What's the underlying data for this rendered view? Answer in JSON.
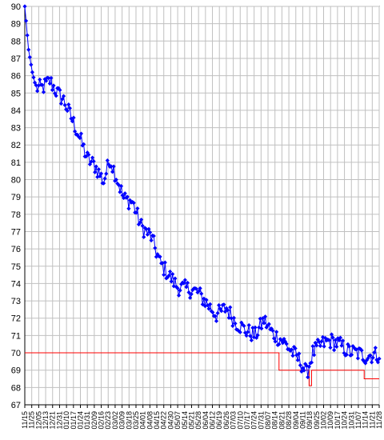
{
  "chart_data": {
    "type": "line",
    "title": "",
    "xlabel": "",
    "ylabel": "",
    "ylim": [
      67,
      90
    ],
    "y_ticks": [
      90,
      89,
      88,
      87,
      86,
      85,
      84,
      83,
      82,
      81,
      80,
      79,
      78,
      77,
      76,
      75,
      74,
      73,
      72,
      71,
      70,
      69,
      68,
      67
    ],
    "x_tick_labels": [
      "11/15",
      "11/25",
      "12/05",
      "12/13",
      "12/21",
      "12/31",
      "01/10",
      "01/17",
      "01/24",
      "01/31",
      "02/09",
      "02/16",
      "02/23",
      "03/02",
      "03/09",
      "03/18",
      "03/25",
      "04/01",
      "04/08",
      "04/15",
      "04/22",
      "04/30",
      "05/07",
      "05/14",
      "05/21",
      "05/28",
      "06/04",
      "06/12",
      "06/19",
      "06/26",
      "07/03",
      "07/10",
      "07/17",
      "07/24",
      "07/31",
      "08/07",
      "08/14",
      "08/21",
      "08/28",
      "09/04",
      "09/11",
      "09/18",
      "09/25",
      "10/02",
      "10/09",
      "10/17",
      "10/24",
      "10/31",
      "11/07",
      "11/14",
      "11/21",
      "11/28"
    ],
    "grid": true,
    "legend": "none",
    "series": [
      {
        "color": "#0000ff",
        "marker": "diamond",
        "x_start": "11/15",
        "anchors": [
          [
            0,
            90.0
          ],
          [
            3,
            87.5
          ],
          [
            6,
            86.2
          ],
          [
            9,
            85.3
          ],
          [
            14,
            85.3
          ],
          [
            20,
            85.7
          ],
          [
            26,
            85.0
          ],
          [
            31,
            84.6
          ],
          [
            37,
            83.6
          ],
          [
            43,
            82.6
          ],
          [
            50,
            81.2
          ],
          [
            56,
            80.8
          ],
          [
            63,
            79.9
          ],
          [
            68,
            81.2
          ],
          [
            73,
            80.2
          ],
          [
            79,
            78.9
          ],
          [
            86,
            78.7
          ],
          [
            93,
            77.3
          ],
          [
            101,
            76.7
          ],
          [
            108,
            75.2
          ],
          [
            115,
            74.5
          ],
          [
            122,
            73.8
          ],
          [
            130,
            73.7
          ],
          [
            138,
            73.5
          ],
          [
            146,
            72.8
          ],
          [
            153,
            72.2
          ],
          [
            161,
            72.6
          ],
          [
            168,
            71.8
          ],
          [
            176,
            71.3
          ],
          [
            184,
            71.0
          ],
          [
            191,
            71.9
          ],
          [
            198,
            71.1
          ],
          [
            206,
            70.7
          ],
          [
            213,
            70.1
          ],
          [
            220,
            69.5
          ],
          [
            225,
            68.8
          ],
          [
            230,
            70.0
          ],
          [
            237,
            70.5
          ],
          [
            244,
            70.7
          ],
          [
            251,
            70.5
          ],
          [
            258,
            70.1
          ],
          [
            265,
            70.0
          ],
          [
            272,
            69.8
          ],
          [
            279,
            69.9
          ],
          [
            283,
            69.9
          ]
        ],
        "noise": 0.48
      }
    ],
    "reference_line": {
      "color": "#ff0000",
      "steps": [
        [
          0,
          70.0
        ],
        [
          203,
          70.0
        ],
        [
          203,
          69.0
        ],
        [
          227,
          69.0
        ],
        [
          227,
          68.1
        ],
        [
          229,
          68.1
        ],
        [
          229,
          69.0
        ],
        [
          271,
          69.0
        ],
        [
          271,
          68.5
        ],
        [
          283,
          68.5
        ]
      ]
    },
    "x_max": 283
  }
}
